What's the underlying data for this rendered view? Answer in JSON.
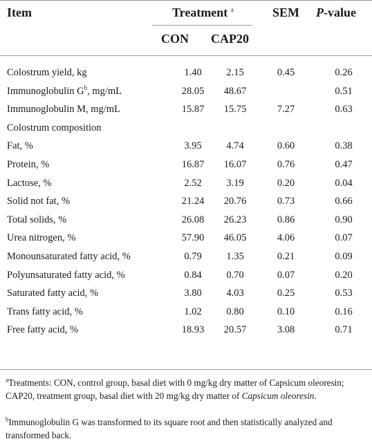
{
  "header": {
    "item": "Item",
    "treatment": "Treatment",
    "treatment_sup": "a",
    "sem": "SEM",
    "pvalue_p": "P",
    "pvalue_rest": "-value",
    "con": "CON",
    "cap20": "CAP20"
  },
  "rows": [
    {
      "item": "Colostrum yield, kg",
      "con": "1.40",
      "cap": "2.15",
      "sem": "0.45",
      "p": "0.26"
    },
    {
      "item": "Immunoglobulin G",
      "sup": "b",
      "item_suffix": ", mg/mL",
      "con": "28.05",
      "cap": "48.67",
      "sem": "",
      "p": "0.51"
    },
    {
      "item": "Immunoglobulin M, mg/mL",
      "con": "15.87",
      "cap": "15.75",
      "sem": "7.27",
      "p": "0.63"
    },
    {
      "item": "Colostrum composition",
      "con": "",
      "cap": "",
      "sem": "",
      "p": ""
    },
    {
      "item": "Fat, %",
      "con": "3.95",
      "cap": "4.74",
      "sem": "0.60",
      "p": "0.38"
    },
    {
      "item": "Protein, %",
      "con": "16.87",
      "cap": "16.07",
      "sem": "0.76",
      "p": "0.47"
    },
    {
      "item": "Lactose, %",
      "con": "2.52",
      "cap": "3.19",
      "sem": "0.20",
      "p": "0.04"
    },
    {
      "item": "Solid not fat, %",
      "con": "21.24",
      "cap": "20.76",
      "sem": "0.73",
      "p": "0.66"
    },
    {
      "item": "Total solids, %",
      "con": "26.08",
      "cap": "26.23",
      "sem": "0.86",
      "p": "0.90"
    },
    {
      "item": "Urea nitrogen, %",
      "con": "57.90",
      "cap": "46.05",
      "sem": "4.06",
      "p": "0.07"
    },
    {
      "item": "Monounsaturated fatty acid, %",
      "con": "0.79",
      "cap": "1.35",
      "sem": "0.21",
      "p": "0.09"
    },
    {
      "item": "Polyunsaturated fatty acid, %",
      "con": "0.84",
      "cap": "0.70",
      "sem": "0.07",
      "p": "0.20"
    },
    {
      "item": "Saturated fatty acid, %",
      "con": "3.80",
      "cap": "4.03",
      "sem": "0.25",
      "p": "0.53"
    },
    {
      "item": "Trans fatty acid, %",
      "con": "1.02",
      "cap": "0.80",
      "sem": "0.10",
      "p": "0.16"
    },
    {
      "item": "Free fatty acid, %",
      "con": "18.93",
      "cap": "20.57",
      "sem": "3.08",
      "p": "0.71"
    }
  ],
  "footnotes": {
    "a_mark": "a",
    "a_text_1": "Treatments: CON, control group, basal diet with 0 mg/kg dry matter of Capsicum oleoresin; CAP20, treatment group, basal diet with 20 mg/kg dry matter of ",
    "a_text_italic": "Capsicum oleoresin",
    "a_text_end": ".",
    "b_mark": "b",
    "b_text": "Immunoglobulin G was transformed to its square root and then statistically analyzed and transformed back."
  }
}
